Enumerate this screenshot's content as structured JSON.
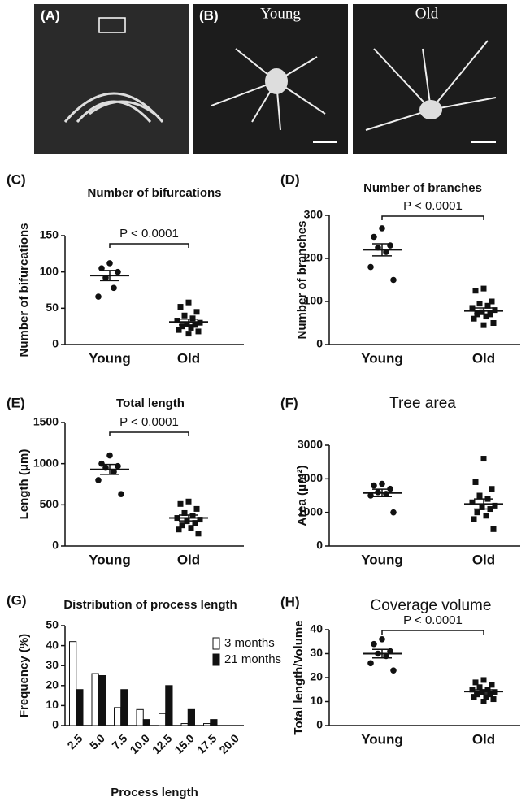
{
  "images": {
    "a_label": "(A)",
    "b_label": "(B)",
    "young": "Young",
    "old": "Old"
  },
  "chart_data": [
    {
      "type": "dotplot",
      "panel": "(C)",
      "title": "Number of bifurcations",
      "ylabel": "Number of bifurcations",
      "categories": [
        "Young",
        "Old"
      ],
      "groups": [
        {
          "marker": "circle",
          "values": [
            112,
            105,
            100,
            92,
            78,
            66
          ],
          "mean": 95,
          "sem": 7
        },
        {
          "marker": "square",
          "values": [
            58,
            52,
            45,
            40,
            36,
            33,
            30,
            28,
            27,
            25,
            23,
            20,
            18,
            15
          ],
          "mean": 31,
          "sem": 4
        }
      ],
      "ylim": [
        0,
        150
      ],
      "yticks": [
        0,
        50,
        100,
        150
      ],
      "annotation": "P < 0.0001"
    },
    {
      "type": "dotplot",
      "panel": "(D)",
      "title": "Number of branches",
      "ylabel": "Number of branches",
      "categories": [
        "Young",
        "Old"
      ],
      "groups": [
        {
          "marker": "circle",
          "values": [
            270,
            250,
            230,
            225,
            215,
            180,
            150
          ],
          "mean": 220,
          "sem": 14
        },
        {
          "marker": "square",
          "values": [
            130,
            125,
            100,
            95,
            90,
            85,
            80,
            75,
            70,
            70,
            65,
            60,
            50,
            45
          ],
          "mean": 78,
          "sem": 7
        }
      ],
      "ylim": [
        0,
        300
      ],
      "yticks": [
        0,
        100,
        200,
        300
      ],
      "annotation": "P < 0.0001"
    },
    {
      "type": "dotplot",
      "panel": "(E)",
      "title": "Total length",
      "ylabel": "Length (μm)",
      "categories": [
        "Young",
        "Old"
      ],
      "groups": [
        {
          "marker": "circle",
          "values": [
            1100,
            1000,
            970,
            950,
            900,
            800,
            630
          ],
          "mean": 930,
          "sem": 60
        },
        {
          "marker": "square",
          "values": [
            540,
            510,
            450,
            400,
            370,
            340,
            320,
            300,
            280,
            250,
            220,
            200,
            150
          ],
          "mean": 340,
          "sem": 35
        }
      ],
      "ylim": [
        0,
        1500
      ],
      "yticks": [
        0,
        500,
        1000,
        1500
      ],
      "annotation": "P < 0.0001"
    },
    {
      "type": "dotplot",
      "panel": "(F)",
      "title": "Tree area",
      "ylabel": "Area (μm²)",
      "categories": [
        "Young",
        "Old"
      ],
      "groups": [
        {
          "marker": "circle",
          "values": [
            1850,
            1800,
            1700,
            1600,
            1550,
            1500,
            1000
          ],
          "mean": 1580,
          "sem": 110
        },
        {
          "marker": "square",
          "values": [
            2600,
            1900,
            1700,
            1500,
            1400,
            1300,
            1200,
            1150,
            1100,
            1000,
            900,
            800,
            500
          ],
          "mean": 1250,
          "sem": 150
        }
      ],
      "ylim": [
        0,
        3000
      ],
      "yticks": [
        0,
        1000,
        2000,
        3000
      ]
    },
    {
      "type": "bar",
      "panel": "(G)",
      "title": "Distribution of process length",
      "xlabel": "Process length",
      "ylabel": "Frequency (%)",
      "categories": [
        "2.5",
        "5.0",
        "7.5",
        "10.0",
        "12.5",
        "15.0",
        "17.5",
        "20.0"
      ],
      "series": [
        {
          "name": "3 months",
          "color": "#ffffff",
          "values": [
            42,
            26,
            9,
            8,
            6,
            1,
            1,
            0
          ]
        },
        {
          "name": "21 months",
          "color": "#111111",
          "values": [
            18,
            25,
            18,
            3,
            20,
            8,
            3,
            0
          ]
        }
      ],
      "ylim": [
        0,
        50
      ],
      "yticks": [
        0,
        10,
        20,
        30,
        40,
        50
      ],
      "legend": "top-right"
    },
    {
      "type": "dotplot",
      "panel": "(H)",
      "title": "Coverage volume",
      "ylabel": "Total length/Volume",
      "categories": [
        "Young",
        "Old"
      ],
      "groups": [
        {
          "marker": "circle",
          "values": [
            36,
            34,
            31,
            30,
            29,
            26,
            23
          ],
          "mean": 30,
          "sem": 1.8
        },
        {
          "marker": "square",
          "values": [
            19,
            18,
            17,
            16,
            15,
            15,
            14,
            14,
            13,
            13,
            12,
            12,
            11,
            10
          ],
          "mean": 14.2,
          "sem": 0.7
        }
      ],
      "ylim": [
        0,
        40
      ],
      "yticks": [
        0,
        10,
        20,
        30,
        40
      ],
      "annotation": "P < 0.0001"
    }
  ]
}
